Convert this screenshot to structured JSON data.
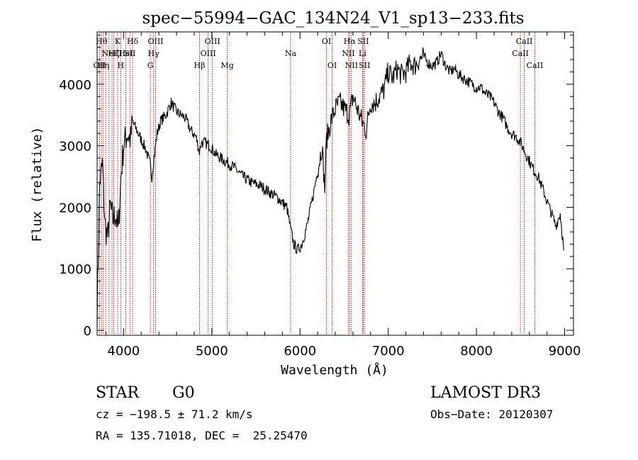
{
  "chart_data": {
    "type": "line",
    "title": "spec−55994−GAC_134N24_V1_sp13−233.fits",
    "xlabel": "Wavelength (Å)",
    "ylabel": "Flux (relative)",
    "xlim": [
      3700,
      9100
    ],
    "ylim": [
      -80,
      4850
    ],
    "xticks": [
      4000,
      5000,
      6000,
      7000,
      8000,
      9000
    ],
    "yticks": [
      0,
      1000,
      2000,
      3000,
      4000
    ],
    "series": [
      {
        "name": "flux",
        "x": [
          3700,
          3730,
          3760,
          3790,
          3820,
          3850,
          3880,
          3910,
          3940,
          3970,
          4000,
          4040,
          4080,
          4100,
          4150,
          4200,
          4250,
          4300,
          4320,
          4340,
          4380,
          4420,
          4480,
          4540,
          4600,
          4650,
          4700,
          4760,
          4820,
          4860,
          4880,
          4920,
          4980,
          5050,
          5150,
          5250,
          5350,
          5450,
          5550,
          5650,
          5750,
          5850,
          5893,
          5930,
          5970,
          6020,
          6080,
          6150,
          6200,
          6250,
          6280,
          6300,
          6350,
          6400,
          6450,
          6500,
          6560,
          6600,
          6650,
          6700,
          6750,
          6800,
          6850,
          6900,
          6950,
          7000,
          7050,
          7100,
          7150,
          7200,
          7250,
          7300,
          7350,
          7400,
          7450,
          7500,
          7550,
          7600,
          7650,
          7700,
          7750,
          7800,
          7850,
          7900,
          7950,
          8000,
          8050,
          8100,
          8150,
          8200,
          8250,
          8300,
          8350,
          8400,
          8450,
          8500,
          8550,
          8600,
          8650,
          8700,
          8750,
          8800,
          8850,
          8900,
          8950,
          8990
        ],
        "values": [
          300,
          2400,
          2700,
          1700,
          1500,
          2000,
          1800,
          1900,
          1600,
          2500,
          3000,
          3200,
          3100,
          3400,
          3250,
          3100,
          2950,
          2700,
          2500,
          2750,
          3200,
          3400,
          3500,
          3700,
          3550,
          3500,
          3450,
          3250,
          3150,
          2900,
          3050,
          3050,
          3000,
          2850,
          2750,
          2650,
          2500,
          2400,
          2350,
          2250,
          2150,
          2000,
          1650,
          1400,
          1300,
          1400,
          1700,
          2200,
          2600,
          3000,
          2300,
          3100,
          3400,
          3600,
          3700,
          3600,
          3500,
          3800,
          3600,
          3400,
          3250,
          3700,
          3700,
          3800,
          3900,
          4200,
          4100,
          4250,
          4150,
          4200,
          4350,
          4300,
          4400,
          4450,
          4350,
          4300,
          4350,
          4500,
          4300,
          4200,
          4250,
          4150,
          4100,
          4050,
          4000,
          3950,
          3950,
          3850,
          3800,
          3700,
          3550,
          3450,
          3300,
          3200,
          3150,
          3050,
          2900,
          2750,
          2600,
          2500,
          2300,
          2100,
          1900,
          1700,
          1900,
          1300
        ]
      }
    ],
    "lines": [
      {
        "x": 3727,
        "label": "OII",
        "row": 2
      },
      {
        "x": 3750,
        "label": "Hθ",
        "row": 0
      },
      {
        "x": 3771,
        "label": "Hη",
        "row": 2
      },
      {
        "x": 3798,
        "label": "",
        "row": 0
      },
      {
        "x": 3835,
        "label": "",
        "row": 0
      },
      {
        "x": 3869,
        "label": "NeIII",
        "row": 1
      },
      {
        "x": 3889,
        "label": "Hζ",
        "row": 1
      },
      {
        "x": 3933,
        "label": "K",
        "row": 0
      },
      {
        "x": 3968,
        "label": "H",
        "row": 2
      },
      {
        "x": 4026,
        "label": "HeI",
        "row": 1
      },
      {
        "x": 4072,
        "label": "SII",
        "row": 1
      },
      {
        "x": 4102,
        "label": "Hδ",
        "row": 0
      },
      {
        "x": 4304,
        "label": "G",
        "row": 2
      },
      {
        "x": 4340,
        "label": "Hγ",
        "row": 1
      },
      {
        "x": 4363,
        "label": "OIII",
        "row": 0
      },
      {
        "x": 4861,
        "label": "Hβ",
        "row": 2
      },
      {
        "x": 4959,
        "label": "OIII",
        "row": 1
      },
      {
        "x": 5007,
        "label": "OIII",
        "row": 0
      },
      {
        "x": 5175,
        "label": "Mg",
        "row": 2
      },
      {
        "x": 5893,
        "label": "Na",
        "row": 1
      },
      {
        "x": 6300,
        "label": "OI",
        "row": 0
      },
      {
        "x": 6364,
        "label": "OI",
        "row": 2
      },
      {
        "x": 6548,
        "label": "NII",
        "row": 1
      },
      {
        "x": 6563,
        "label": "Hα",
        "row": 0
      },
      {
        "x": 6583,
        "label": "NII",
        "row": 2
      },
      {
        "x": 6708,
        "label": "Li",
        "row": 1
      },
      {
        "x": 6716,
        "label": "SII",
        "row": 0
      },
      {
        "x": 6731,
        "label": "SII",
        "row": 2
      },
      {
        "x": 8498,
        "label": "CaII",
        "row": 1
      },
      {
        "x": 8542,
        "label": "CaII",
        "row": 0
      },
      {
        "x": 8662,
        "label": "CaII",
        "row": 2
      }
    ]
  },
  "info": {
    "class_label": "STAR",
    "subclass": "G0",
    "survey": "LAMOST DR3",
    "cz": "cz = −198.5 ± 71.2 km/s",
    "obs_date": "Obs−Date: 20120307",
    "coords": "RA = 135.71018, DEC =  25.25470"
  }
}
